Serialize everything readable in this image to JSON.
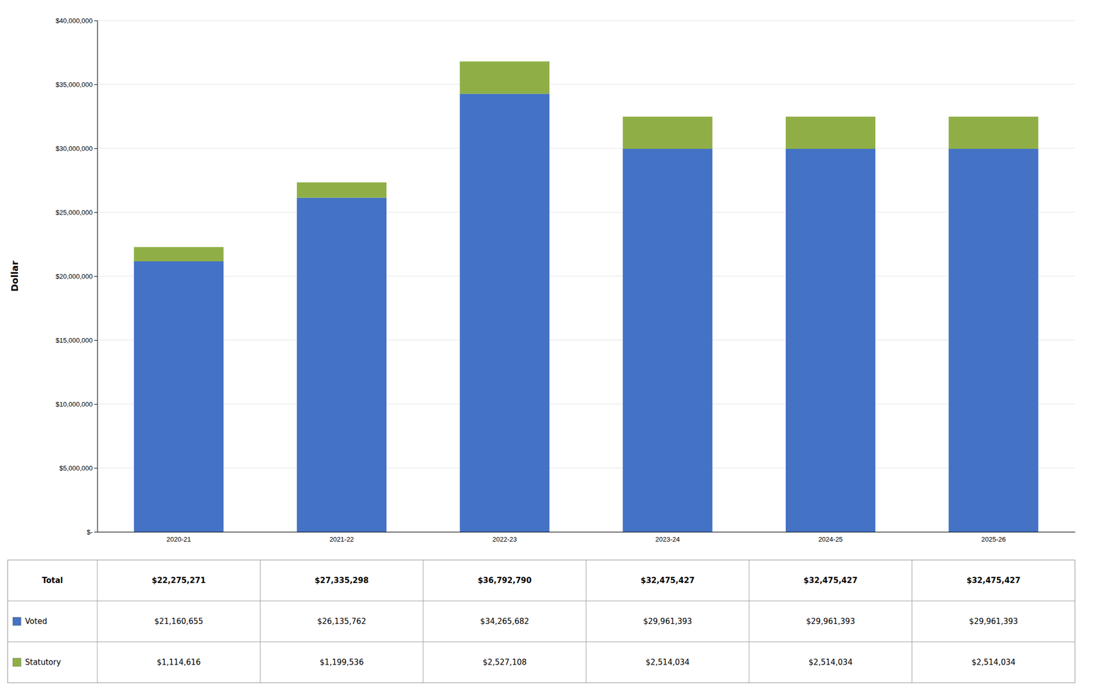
{
  "chart_data": {
    "type": "bar",
    "stacked": true,
    "grid": true,
    "y_label": "Dollar",
    "categories": [
      "2020-21",
      "2021-22",
      "2022-23",
      "2023-24",
      "2024-25",
      "2025-26"
    ],
    "series": [
      {
        "name": "Voted",
        "color": "#4472C4",
        "values": [
          21160655,
          26135762,
          34265682,
          29961393,
          29961393,
          29961393
        ],
        "value_labels": [
          "$21,160,655",
          "$26,135,762",
          "$34,265,682",
          "$29,961,393",
          "$29,961,393",
          "$29,961,393"
        ]
      },
      {
        "name": "Statutory",
        "color": "#8FAF46",
        "values": [
          1114616,
          1199536,
          2527108,
          2514034,
          2514034,
          2514034
        ],
        "value_labels": [
          "$1,114,616",
          "$1,199,536",
          "$2,527,108",
          "$2,514,034",
          "$2,514,034",
          "$2,514,034"
        ]
      }
    ],
    "totals": {
      "name": "Total",
      "values": [
        22275271,
        27335298,
        36792790,
        32475427,
        32475427,
        32475427
      ],
      "value_labels": [
        "$22,275,271",
        "$27,335,298",
        "$36,792,790",
        "$32,475,427",
        "$32,475,427",
        "$32,475,427"
      ]
    },
    "ylim": [
      0,
      40000000
    ],
    "yticks": [
      {
        "value": 0,
        "label": "$-"
      },
      {
        "value": 5000000,
        "label": "$5,000,000"
      },
      {
        "value": 10000000,
        "label": "$10,000,000"
      },
      {
        "value": 15000000,
        "label": "$15,000,000"
      },
      {
        "value": 20000000,
        "label": "$20,000,000"
      },
      {
        "value": 25000000,
        "label": "$25,000,000"
      },
      {
        "value": 30000000,
        "label": "$30,000,000"
      },
      {
        "value": 35000000,
        "label": "$35,000,000"
      },
      {
        "value": 40000000,
        "label": "$40,000,000"
      }
    ]
  }
}
